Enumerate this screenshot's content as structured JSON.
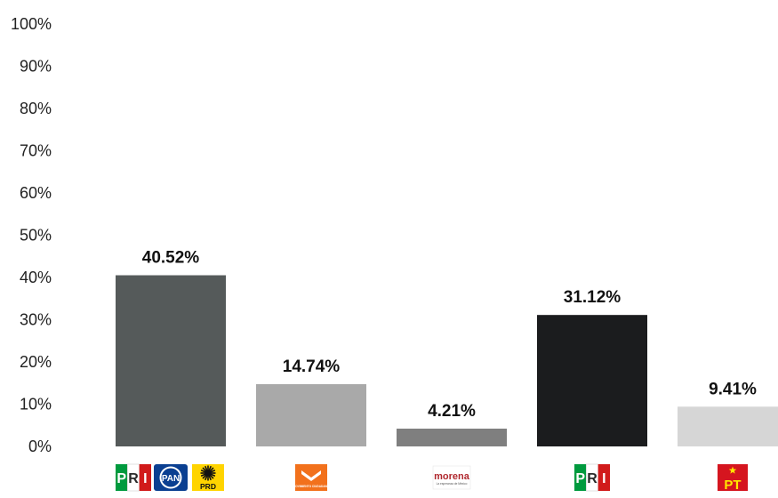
{
  "chart_data": {
    "type": "bar",
    "categories": [
      "PRI / PAN / PRD",
      "Movimiento Ciudadano",
      "morena",
      "PRI",
      "PT"
    ],
    "values": [
      40.52,
      14.74,
      4.21,
      31.12,
      9.41
    ],
    "value_labels": [
      "40.52%",
      "14.74%",
      "4.21%",
      "31.12%",
      "9.41%"
    ],
    "bar_colors": [
      "#555a5a",
      "#a9a9a9",
      "#7f7f7f",
      "#1b1c1e",
      "#d6d6d6"
    ],
    "ylim": [
      0,
      100
    ],
    "yticks": [
      0,
      10,
      20,
      30,
      40,
      50,
      60,
      70,
      80,
      90,
      100
    ],
    "ytick_labels": [
      "0%",
      "10%",
      "20%",
      "30%",
      "40%",
      "50%",
      "60%",
      "70%",
      "80%",
      "90%",
      "100%"
    ],
    "grid": false,
    "legend": "none",
    "x_logos": [
      [
        "pri-logo",
        "pan-logo",
        "prd-logo"
      ],
      [
        "movimiento-ciudadano-logo"
      ],
      [
        "morena-logo"
      ],
      [
        "pri-logo"
      ],
      [
        "pt-logo"
      ]
    ]
  },
  "logos": {
    "pri_letters": [
      "P",
      "R",
      "I"
    ],
    "pan_text": "PAN",
    "prd_text": "PRD",
    "mc_text": "MOVIMIENTO CIUDADANO",
    "morena_text": "morena",
    "morena_tagline": "La esperanza de México",
    "pt_text": "PT"
  },
  "colors": {
    "pri_green": "#009a3e",
    "pri_red": "#d11a1a",
    "pan_blue": "#0a3f91",
    "prd_yellow": "#ffd400",
    "mc_orange": "#f2711c",
    "morena_maroon": "#b0282e",
    "pt_red": "#d5151f",
    "pt_yellow": "#ffe600"
  }
}
